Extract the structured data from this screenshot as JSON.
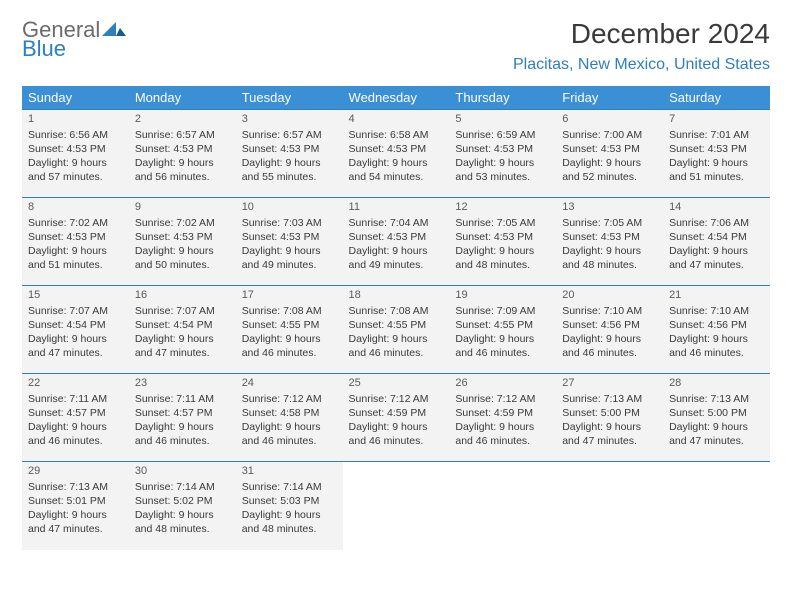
{
  "logo": {
    "word1": "General",
    "word2": "Blue"
  },
  "title": "December 2024",
  "location": "Placitas, New Mexico, United States",
  "colors": {
    "header_bg": "#3b8fd4",
    "accent": "#2d7fc0",
    "cell_bg": "#f3f3f3",
    "text": "#3a3a3a"
  },
  "weekdays": [
    "Sunday",
    "Monday",
    "Tuesday",
    "Wednesday",
    "Thursday",
    "Friday",
    "Saturday"
  ],
  "weeks": [
    [
      {
        "n": "1",
        "sr": "Sunrise: 6:56 AM",
        "ss": "Sunset: 4:53 PM",
        "d1": "Daylight: 9 hours",
        "d2": "and 57 minutes."
      },
      {
        "n": "2",
        "sr": "Sunrise: 6:57 AM",
        "ss": "Sunset: 4:53 PM",
        "d1": "Daylight: 9 hours",
        "d2": "and 56 minutes."
      },
      {
        "n": "3",
        "sr": "Sunrise: 6:57 AM",
        "ss": "Sunset: 4:53 PM",
        "d1": "Daylight: 9 hours",
        "d2": "and 55 minutes."
      },
      {
        "n": "4",
        "sr": "Sunrise: 6:58 AM",
        "ss": "Sunset: 4:53 PM",
        "d1": "Daylight: 9 hours",
        "d2": "and 54 minutes."
      },
      {
        "n": "5",
        "sr": "Sunrise: 6:59 AM",
        "ss": "Sunset: 4:53 PM",
        "d1": "Daylight: 9 hours",
        "d2": "and 53 minutes."
      },
      {
        "n": "6",
        "sr": "Sunrise: 7:00 AM",
        "ss": "Sunset: 4:53 PM",
        "d1": "Daylight: 9 hours",
        "d2": "and 52 minutes."
      },
      {
        "n": "7",
        "sr": "Sunrise: 7:01 AM",
        "ss": "Sunset: 4:53 PM",
        "d1": "Daylight: 9 hours",
        "d2": "and 51 minutes."
      }
    ],
    [
      {
        "n": "8",
        "sr": "Sunrise: 7:02 AM",
        "ss": "Sunset: 4:53 PM",
        "d1": "Daylight: 9 hours",
        "d2": "and 51 minutes."
      },
      {
        "n": "9",
        "sr": "Sunrise: 7:02 AM",
        "ss": "Sunset: 4:53 PM",
        "d1": "Daylight: 9 hours",
        "d2": "and 50 minutes."
      },
      {
        "n": "10",
        "sr": "Sunrise: 7:03 AM",
        "ss": "Sunset: 4:53 PM",
        "d1": "Daylight: 9 hours",
        "d2": "and 49 minutes."
      },
      {
        "n": "11",
        "sr": "Sunrise: 7:04 AM",
        "ss": "Sunset: 4:53 PM",
        "d1": "Daylight: 9 hours",
        "d2": "and 49 minutes."
      },
      {
        "n": "12",
        "sr": "Sunrise: 7:05 AM",
        "ss": "Sunset: 4:53 PM",
        "d1": "Daylight: 9 hours",
        "d2": "and 48 minutes."
      },
      {
        "n": "13",
        "sr": "Sunrise: 7:05 AM",
        "ss": "Sunset: 4:53 PM",
        "d1": "Daylight: 9 hours",
        "d2": "and 48 minutes."
      },
      {
        "n": "14",
        "sr": "Sunrise: 7:06 AM",
        "ss": "Sunset: 4:54 PM",
        "d1": "Daylight: 9 hours",
        "d2": "and 47 minutes."
      }
    ],
    [
      {
        "n": "15",
        "sr": "Sunrise: 7:07 AM",
        "ss": "Sunset: 4:54 PM",
        "d1": "Daylight: 9 hours",
        "d2": "and 47 minutes."
      },
      {
        "n": "16",
        "sr": "Sunrise: 7:07 AM",
        "ss": "Sunset: 4:54 PM",
        "d1": "Daylight: 9 hours",
        "d2": "and 47 minutes."
      },
      {
        "n": "17",
        "sr": "Sunrise: 7:08 AM",
        "ss": "Sunset: 4:55 PM",
        "d1": "Daylight: 9 hours",
        "d2": "and 46 minutes."
      },
      {
        "n": "18",
        "sr": "Sunrise: 7:08 AM",
        "ss": "Sunset: 4:55 PM",
        "d1": "Daylight: 9 hours",
        "d2": "and 46 minutes."
      },
      {
        "n": "19",
        "sr": "Sunrise: 7:09 AM",
        "ss": "Sunset: 4:55 PM",
        "d1": "Daylight: 9 hours",
        "d2": "and 46 minutes."
      },
      {
        "n": "20",
        "sr": "Sunrise: 7:10 AM",
        "ss": "Sunset: 4:56 PM",
        "d1": "Daylight: 9 hours",
        "d2": "and 46 minutes."
      },
      {
        "n": "21",
        "sr": "Sunrise: 7:10 AM",
        "ss": "Sunset: 4:56 PM",
        "d1": "Daylight: 9 hours",
        "d2": "and 46 minutes."
      }
    ],
    [
      {
        "n": "22",
        "sr": "Sunrise: 7:11 AM",
        "ss": "Sunset: 4:57 PM",
        "d1": "Daylight: 9 hours",
        "d2": "and 46 minutes."
      },
      {
        "n": "23",
        "sr": "Sunrise: 7:11 AM",
        "ss": "Sunset: 4:57 PM",
        "d1": "Daylight: 9 hours",
        "d2": "and 46 minutes."
      },
      {
        "n": "24",
        "sr": "Sunrise: 7:12 AM",
        "ss": "Sunset: 4:58 PM",
        "d1": "Daylight: 9 hours",
        "d2": "and 46 minutes."
      },
      {
        "n": "25",
        "sr": "Sunrise: 7:12 AM",
        "ss": "Sunset: 4:59 PM",
        "d1": "Daylight: 9 hours",
        "d2": "and 46 minutes."
      },
      {
        "n": "26",
        "sr": "Sunrise: 7:12 AM",
        "ss": "Sunset: 4:59 PM",
        "d1": "Daylight: 9 hours",
        "d2": "and 46 minutes."
      },
      {
        "n": "27",
        "sr": "Sunrise: 7:13 AM",
        "ss": "Sunset: 5:00 PM",
        "d1": "Daylight: 9 hours",
        "d2": "and 47 minutes."
      },
      {
        "n": "28",
        "sr": "Sunrise: 7:13 AM",
        "ss": "Sunset: 5:00 PM",
        "d1": "Daylight: 9 hours",
        "d2": "and 47 minutes."
      }
    ],
    [
      {
        "n": "29",
        "sr": "Sunrise: 7:13 AM",
        "ss": "Sunset: 5:01 PM",
        "d1": "Daylight: 9 hours",
        "d2": "and 47 minutes."
      },
      {
        "n": "30",
        "sr": "Sunrise: 7:14 AM",
        "ss": "Sunset: 5:02 PM",
        "d1": "Daylight: 9 hours",
        "d2": "and 48 minutes."
      },
      {
        "n": "31",
        "sr": "Sunrise: 7:14 AM",
        "ss": "Sunset: 5:03 PM",
        "d1": "Daylight: 9 hours",
        "d2": "and 48 minutes."
      },
      null,
      null,
      null,
      null
    ]
  ]
}
